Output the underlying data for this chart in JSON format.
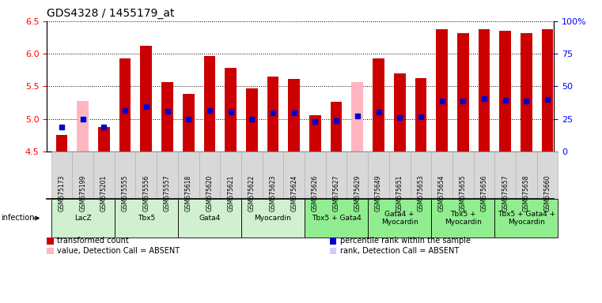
{
  "title": "GDS4328 / 1455179_at",
  "samples": [
    "GSM675173",
    "GSM675199",
    "GSM675201",
    "GSM675555",
    "GSM675556",
    "GSM675557",
    "GSM675618",
    "GSM675620",
    "GSM675621",
    "GSM675622",
    "GSM675623",
    "GSM675624",
    "GSM675626",
    "GSM675627",
    "GSM675629",
    "GSM675649",
    "GSM675651",
    "GSM675653",
    "GSM675654",
    "GSM675655",
    "GSM675656",
    "GSM675657",
    "GSM675658",
    "GSM675660"
  ],
  "red_values": [
    4.75,
    0.0,
    4.88,
    5.93,
    6.12,
    5.56,
    5.39,
    5.96,
    5.78,
    5.47,
    5.65,
    5.62,
    5.06,
    5.26,
    0.0,
    5.93,
    5.7,
    5.63,
    6.38,
    6.32,
    6.38,
    6.35,
    6.32,
    6.38
  ],
  "pink_values": [
    0.0,
    5.27,
    0.0,
    0.0,
    0.0,
    0.0,
    0.0,
    0.0,
    0.0,
    0.0,
    0.0,
    0.0,
    0.0,
    0.0,
    5.56,
    0.0,
    0.0,
    0.0,
    0.0,
    0.0,
    0.0,
    0.0,
    0.0,
    0.0
  ],
  "blue_values": [
    4.88,
    5.0,
    4.88,
    5.13,
    5.19,
    5.12,
    5.0,
    5.13,
    5.1,
    5.0,
    5.09,
    5.09,
    4.96,
    4.97,
    5.04,
    5.11,
    5.02,
    5.03,
    5.27,
    5.28,
    5.31,
    5.29,
    5.27,
    5.3
  ],
  "pink_rank_values": [
    0.0,
    5.02,
    0.0,
    0.0,
    0.0,
    0.0,
    0.0,
    0.0,
    0.0,
    0.0,
    0.0,
    0.0,
    0.0,
    0.0,
    5.04,
    0.0,
    0.0,
    0.0,
    0.0,
    0.0,
    0.0,
    0.0,
    0.0,
    0.0
  ],
  "absent": [
    false,
    true,
    false,
    false,
    false,
    false,
    false,
    false,
    false,
    false,
    false,
    false,
    false,
    false,
    true,
    false,
    false,
    false,
    false,
    false,
    false,
    false,
    false,
    false
  ],
  "groups": [
    {
      "label": "LacZ",
      "start": 0,
      "end": 2,
      "color": "#d0f0d0"
    },
    {
      "label": "Tbx5",
      "start": 3,
      "end": 5,
      "color": "#d0f0d0"
    },
    {
      "label": "Gata4",
      "start": 6,
      "end": 8,
      "color": "#d0f0d0"
    },
    {
      "label": "Myocardin",
      "start": 9,
      "end": 11,
      "color": "#d0f0d0"
    },
    {
      "label": "Tbx5 + Gata4",
      "start": 12,
      "end": 14,
      "color": "#90ee90"
    },
    {
      "label": "Gata4 +\nMyocardin",
      "start": 15,
      "end": 17,
      "color": "#90ee90"
    },
    {
      "label": "Tbx5 +\nMyocardin",
      "start": 18,
      "end": 20,
      "color": "#90ee90"
    },
    {
      "label": "Tbx5 + Gata4 +\nMyocardin",
      "start": 21,
      "end": 23,
      "color": "#90ee90"
    }
  ],
  "ylim_left": [
    4.5,
    6.5
  ],
  "baseline": 4.5,
  "bar_color_red": "#cc0000",
  "bar_color_pink": "#ffb6c1",
  "bar_color_blue": "#0000cc",
  "bar_color_pink_rank": "#ccccff",
  "bar_width": 0.55,
  "x_min": -0.7,
  "x_max": 23.3,
  "sample_bg": "#d8d8d8",
  "bg_white": "#ffffff"
}
